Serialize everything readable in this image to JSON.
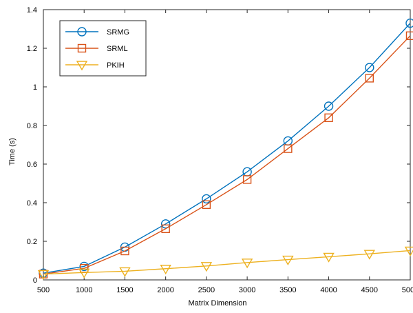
{
  "chart_data": {
    "type": "line",
    "title": "",
    "xlabel": "Matrix Dimension",
    "ylabel": "Time (s)",
    "xlim": [
      500,
      5000
    ],
    "ylim": [
      0,
      1.4
    ],
    "xticks": [
      500,
      1000,
      1500,
      2000,
      2500,
      3000,
      3500,
      4000,
      4500,
      5000
    ],
    "yticks": [
      0,
      0.2,
      0.4,
      0.6,
      0.8,
      1,
      1.2,
      1.4
    ],
    "xtick_labels": [
      "500",
      "1000",
      "1500",
      "2000",
      "2500",
      "3000",
      "3500",
      "4000",
      "4500",
      "5000"
    ],
    "ytick_labels": [
      "0",
      "0.2",
      "0.4",
      "0.6",
      "0.8",
      "1",
      "1.2",
      "1.4"
    ],
    "grid": false,
    "legend_position": "top-left",
    "x": [
      500,
      1000,
      1500,
      2000,
      2500,
      3000,
      3500,
      4000,
      4500,
      5000
    ],
    "series": [
      {
        "name": "SRMG",
        "marker": "circle",
        "color": "#0072BD",
        "values": [
          0.035,
          0.07,
          0.17,
          0.29,
          0.42,
          0.56,
          0.72,
          0.9,
          1.1,
          1.33
        ]
      },
      {
        "name": "SRML",
        "marker": "square",
        "color": "#D95319",
        "values": [
          0.03,
          0.06,
          0.15,
          0.265,
          0.39,
          0.52,
          0.68,
          0.84,
          1.045,
          1.265
        ]
      },
      {
        "name": "PKIH",
        "marker": "triangle-down",
        "color": "#EDB120",
        "values": [
          0.03,
          0.038,
          0.045,
          0.058,
          0.072,
          0.09,
          0.105,
          0.12,
          0.135,
          0.152
        ]
      }
    ]
  }
}
